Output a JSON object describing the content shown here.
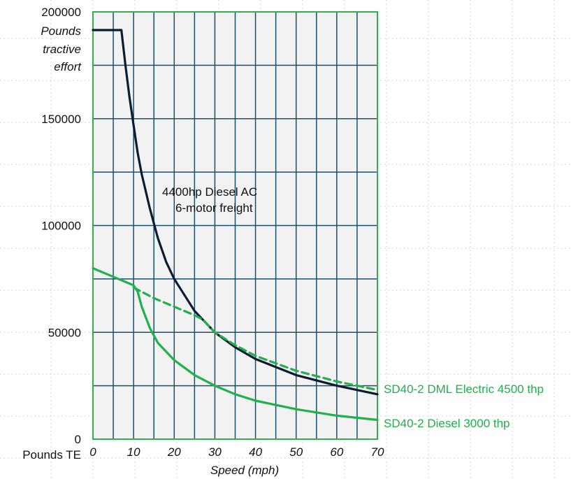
{
  "chart_data": {
    "type": "line",
    "xlabel": "Speed (mph)",
    "ylabel_lines": [
      "Pounds",
      "tractive",
      "effort"
    ],
    "y_unit_label": "Pounds TE",
    "xlim": [
      0,
      70
    ],
    "ylim": [
      0,
      200000
    ],
    "x_ticks": [
      "0",
      "10",
      "20",
      "30",
      "40",
      "50",
      "60",
      "70"
    ],
    "y_ticks": [
      "0",
      "50000",
      "100000",
      "150000",
      "200000"
    ],
    "grid": true,
    "annotation_lines": [
      "4400hp Diesel AC",
      "6-motor freight"
    ],
    "series": [
      {
        "name": "4400hp Diesel AC 6-motor freight",
        "color": "#0d1b33",
        "style": "solid",
        "x": [
          0,
          7,
          8,
          9,
          10,
          11,
          12,
          14,
          16,
          18,
          20,
          25,
          30,
          35,
          40,
          50,
          60,
          70
        ],
        "y": [
          191500,
          191500,
          175000,
          160000,
          147000,
          134000,
          124000,
          108000,
          94000,
          83000,
          75000,
          60000,
          50000,
          43000,
          37500,
          30000,
          25000,
          21000
        ]
      },
      {
        "name": "SD40-2 DML Electric 4500 thp",
        "color": "#1fb14c",
        "style": "dashed",
        "x": [
          10,
          15,
          20,
          25,
          27,
          30,
          35,
          40,
          50,
          60,
          70
        ],
        "y": [
          71000,
          66000,
          62000,
          58000,
          56000,
          50000,
          44000,
          39000,
          32000,
          27000,
          23000
        ]
      },
      {
        "name": "SD40-2 Diesel 3000 thp",
        "color": "#1fb14c",
        "style": "solid",
        "x": [
          0,
          5,
          10,
          11,
          12,
          14,
          16,
          20,
          25,
          30,
          35,
          40,
          50,
          60,
          70
        ],
        "y": [
          80000,
          76000,
          72000,
          69000,
          62000,
          52000,
          45000,
          37000,
          30000,
          25000,
          21000,
          18000,
          14000,
          11000,
          9000
        ]
      }
    ],
    "series_label_texts": [
      "SD40-2 DML Electric 4500 thp",
      "SD40-2 Diesel 3000 thp"
    ],
    "colors": {
      "plot_border": "#2db34a",
      "grid": "#1a4f6e",
      "plot_bg": "#f2f2f2"
    }
  }
}
